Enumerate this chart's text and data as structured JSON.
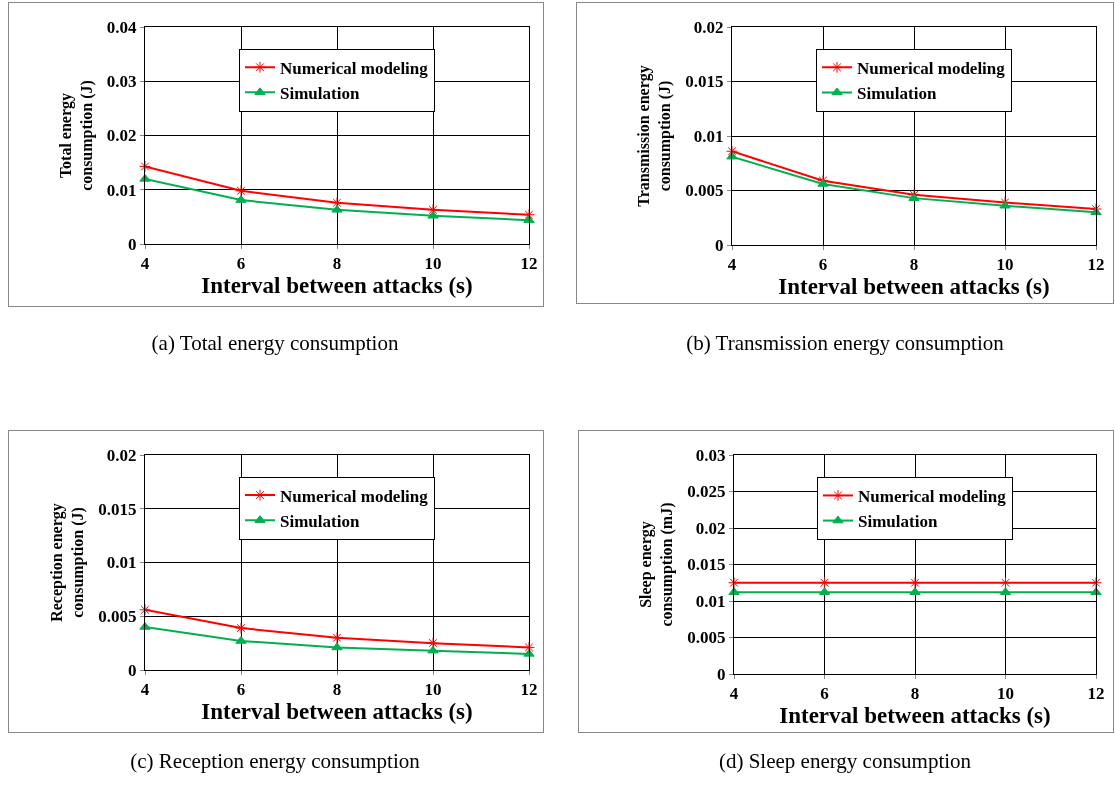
{
  "chart_data": [
    {
      "type": "line",
      "ylabel": "Total energy consumption (J)",
      "xlabel": "Interval between attacks (s)",
      "x": [
        4,
        6,
        8,
        10,
        12
      ],
      "xlim": [
        4,
        12
      ],
      "xticks": [
        4,
        6,
        8,
        10,
        12
      ],
      "ylim": [
        0,
        0.04
      ],
      "yticks": [
        0,
        0.01,
        0.02,
        0.03,
        0.04
      ],
      "grid": true,
      "legend": "top",
      "annotations": [
        "(a) Total energy consumption"
      ],
      "series": [
        {
          "name": "Numerical modeling",
          "color": "#ff0000",
          "marker": "cross",
          "values": [
            0.0143,
            0.0098,
            0.0076,
            0.0063,
            0.0054
          ]
        },
        {
          "name": "Simulation",
          "color": "#00b050",
          "marker": "triangle",
          "values": [
            0.012,
            0.0081,
            0.0063,
            0.0052,
            0.0044
          ]
        }
      ]
    },
    {
      "type": "line",
      "ylabel": "Transmission energy consumption (J)",
      "xlabel": "Interval between attacks (s)",
      "x": [
        4,
        6,
        8,
        10,
        12
      ],
      "xlim": [
        4,
        12
      ],
      "xticks": [
        4,
        6,
        8,
        10,
        12
      ],
      "ylim": [
        0,
        0.02
      ],
      "yticks": [
        0,
        0.005,
        0.01,
        0.015,
        0.02
      ],
      "grid": true,
      "legend": "top",
      "annotations": [
        "(b) Transmission energy consumption"
      ],
      "series": [
        {
          "name": "Numerical modeling",
          "color": "#ff0000",
          "marker": "cross",
          "values": [
            0.0086,
            0.0059,
            0.0046,
            0.0039,
            0.0033
          ]
        },
        {
          "name": "Simulation",
          "color": "#00b050",
          "marker": "triangle",
          "values": [
            0.0081,
            0.0056,
            0.0043,
            0.0036,
            0.003
          ]
        }
      ]
    },
    {
      "type": "line",
      "ylabel": "Reception energy consumption (J)",
      "xlabel": "Interval between attacks (s)",
      "x": [
        4,
        6,
        8,
        10,
        12
      ],
      "xlim": [
        4,
        12
      ],
      "xticks": [
        4,
        6,
        8,
        10,
        12
      ],
      "ylim": [
        0,
        0.02
      ],
      "yticks": [
        0,
        0.005,
        0.01,
        0.015,
        0.02
      ],
      "grid": true,
      "legend": "top",
      "annotations": [
        "(c) Reception energy consumption"
      ],
      "series": [
        {
          "name": "Numerical modeling",
          "color": "#ff0000",
          "marker": "cross",
          "values": [
            0.0056,
            0.0039,
            0.003,
            0.0025,
            0.0021
          ]
        },
        {
          "name": "Simulation",
          "color": "#00b050",
          "marker": "triangle",
          "values": [
            0.004,
            0.0027,
            0.0021,
            0.0018,
            0.0015
          ]
        }
      ]
    },
    {
      "type": "line",
      "ylabel": "Sleep energy consumption (mJ)",
      "xlabel": "Interval between attacks (s)",
      "x": [
        4,
        6,
        8,
        10,
        12
      ],
      "xlim": [
        4,
        12
      ],
      "xticks": [
        4,
        6,
        8,
        10,
        12
      ],
      "ylim": [
        0,
        0.03
      ],
      "yticks": [
        0,
        0.005,
        0.01,
        0.015,
        0.02,
        0.025,
        0.03
      ],
      "grid": true,
      "legend": "top",
      "annotations": [
        "(d) Sleep energy consumption"
      ],
      "series": [
        {
          "name": "Numerical modeling",
          "color": "#ff0000",
          "marker": "cross",
          "values": [
            0.0125,
            0.0125,
            0.0125,
            0.0125,
            0.0125
          ]
        },
        {
          "name": "Simulation",
          "color": "#00b050",
          "marker": "triangle",
          "values": [
            0.0112,
            0.0112,
            0.0112,
            0.0112,
            0.0112
          ]
        }
      ]
    }
  ]
}
